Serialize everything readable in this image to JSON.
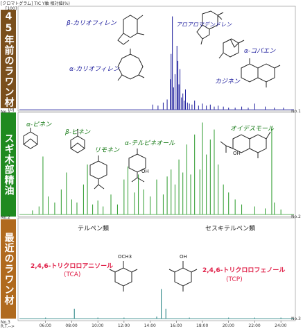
{
  "header": {
    "title": "[クロマトグラム]  TIC  Y軸  相対値(%)",
    "top_value": "[100]",
    "bottom_value": "[0]",
    "x_unit": "R.T.-->"
  },
  "panels": [
    {
      "label": "45年前のラワン材",
      "color": "#7a4f1c",
      "trace_color": "#1c1c9c",
      "row_label": "No.1",
      "left_label": "No.1"
    },
    {
      "label": "スギ木部精油",
      "color": "#1f8a1f",
      "trace_color": "#2a9a2a",
      "row_label": "No.2",
      "left_label": "No.2"
    },
    {
      "label": "最近のラワン材",
      "color": "#b06a1e",
      "trace_color": "#167a7a",
      "row_label": "No.3",
      "left_label": "No.3"
    }
  ],
  "annotations": {
    "panel1": [
      {
        "text": "β-カリオフィレン"
      },
      {
        "text": "アロアロマデンドレン"
      },
      {
        "text": "α-コパエン"
      },
      {
        "text": "α-カリオフィレン"
      },
      {
        "text": "カジネン"
      }
    ],
    "panel2": [
      {
        "text": "α-ピネン"
      },
      {
        "text": "β-ピネン"
      },
      {
        "text": "リモネン"
      },
      {
        "text": "α-テルピネオール"
      },
      {
        "text": "オイデスモール"
      },
      {
        "text": "OH"
      },
      {
        "text": "OH"
      },
      {
        "text": "テルペン類"
      },
      {
        "text": "セスキテルペン類"
      }
    ],
    "panel3": [
      {
        "text": "2,4,6-トリクロロアニソール"
      },
      {
        "text": "(TCA)"
      },
      {
        "text": "2,4,6-トリクロロフェノール"
      },
      {
        "text": "(TCP)"
      },
      {
        "text": "OCH3"
      },
      {
        "text": "OH"
      }
    ]
  },
  "chart_data": [
    {
      "type": "line",
      "name": "45年前のラワン材",
      "xlim": [
        4.0,
        25.0
      ],
      "ylim": [
        0,
        100
      ],
      "x": [
        14.2,
        14.6,
        15.0,
        15.3,
        15.55,
        15.6,
        15.7,
        15.8,
        15.9,
        16.05,
        16.12,
        16.2,
        16.28,
        16.4,
        16.5,
        16.6,
        16.7,
        16.85,
        17.0,
        17.2,
        17.4,
        17.7,
        18.0,
        18.3,
        18.6,
        18.9,
        19.2,
        19.6,
        20.0,
        20.5,
        21.0,
        21.5,
        22.0,
        22.8,
        23.5,
        24.2
      ],
      "y": [
        5,
        4,
        7,
        10,
        30,
        55,
        92,
        22,
        35,
        63,
        48,
        25,
        40,
        12,
        16,
        9,
        20,
        7,
        6,
        5,
        9,
        4,
        6,
        4,
        5,
        3,
        4,
        3,
        2,
        2,
        3,
        2,
        6,
        3,
        2,
        2
      ]
    },
    {
      "type": "line",
      "name": "スギ木部精油",
      "xlim": [
        4.0,
        25.0
      ],
      "ylim": [
        0,
        100
      ],
      "x": [
        5.0,
        5.5,
        5.8,
        6.2,
        6.7,
        7.2,
        7.6,
        8.0,
        8.4,
        8.9,
        9.2,
        9.6,
        10.0,
        10.4,
        11.0,
        11.5,
        12.0,
        12.3,
        12.8,
        13.1,
        13.5,
        14.0,
        14.5,
        15.0,
        15.3,
        15.6,
        15.9,
        16.2,
        16.5,
        16.8,
        17.1,
        17.4,
        17.8,
        18.0,
        18.3,
        18.6,
        18.9,
        19.2,
        19.6,
        20.0,
        20.5,
        21.0,
        22.0,
        22.8,
        23.3,
        23.5,
        24.0
      ],
      "y": [
        4,
        8,
        58,
        18,
        12,
        25,
        42,
        15,
        12,
        30,
        50,
        10,
        14,
        8,
        20,
        10,
        35,
        48,
        22,
        40,
        25,
        18,
        35,
        20,
        38,
        45,
        30,
        55,
        42,
        70,
        40,
        80,
        45,
        92,
        60,
        75,
        85,
        50,
        30,
        22,
        15,
        10,
        8,
        6,
        88,
        12,
        5
      ]
    },
    {
      "type": "line",
      "name": "最近のラワン材",
      "xlim": [
        4.0,
        25.0
      ],
      "ylim": [
        0,
        100
      ],
      "x": [
        6.0,
        8.2,
        10.0,
        12.0,
        14.5,
        14.85,
        15.2,
        17.0,
        20.0,
        22.0,
        24.0
      ],
      "y": [
        1,
        10,
        1,
        1,
        2,
        30,
        10,
        1,
        1,
        1,
        1
      ]
    }
  ],
  "x_ticks": [
    "06:00",
    "08:00",
    "10:00",
    "12:00",
    "14:00",
    "16:00",
    "18:00",
    "20:00",
    "22:00",
    "24:00"
  ]
}
